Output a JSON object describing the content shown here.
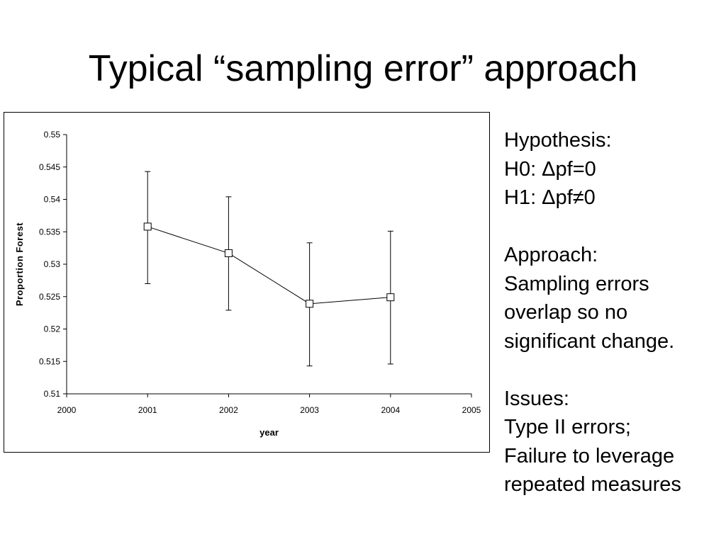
{
  "slide": {
    "title": "Typical “sampling error” approach"
  },
  "notes": {
    "lines": [
      "Hypothesis:",
      "H0: Δpf=0",
      "H1: Δpf≠0",
      "",
      "Approach:",
      "Sampling errors",
      "overlap so no",
      "significant change.",
      "",
      "Issues:",
      "Type II errors;",
      "Failure to leverage",
      "repeated measures"
    ]
  },
  "chart_data": {
    "type": "line",
    "title": "",
    "xlabel": "year",
    "ylabel": "Proportion Forest",
    "xlim": [
      2000,
      2005
    ],
    "ylim": [
      0.51,
      0.55
    ],
    "x_ticks": [
      "2000",
      "2001",
      "2002",
      "2003",
      "2004",
      "2005"
    ],
    "y_ticks": [
      "0.51",
      "0.515",
      "0.52",
      "0.525",
      "0.53",
      "0.535",
      "0.54",
      "0.545",
      "0.55"
    ],
    "grid": false,
    "legend": "none",
    "marker": "open-square",
    "series": [
      {
        "x": [
          2001,
          2002,
          2003,
          2004
        ],
        "values": [
          0.5358,
          0.5317,
          0.5239,
          0.5249
        ],
        "error_low": [
          0.527,
          0.5229,
          0.5143,
          0.5146
        ],
        "error_high": [
          0.5443,
          0.5404,
          0.5333,
          0.5351
        ]
      }
    ],
    "colors": {
      "line": "#000000",
      "axis": "#000000",
      "marker_fill": "#ffffff"
    }
  }
}
